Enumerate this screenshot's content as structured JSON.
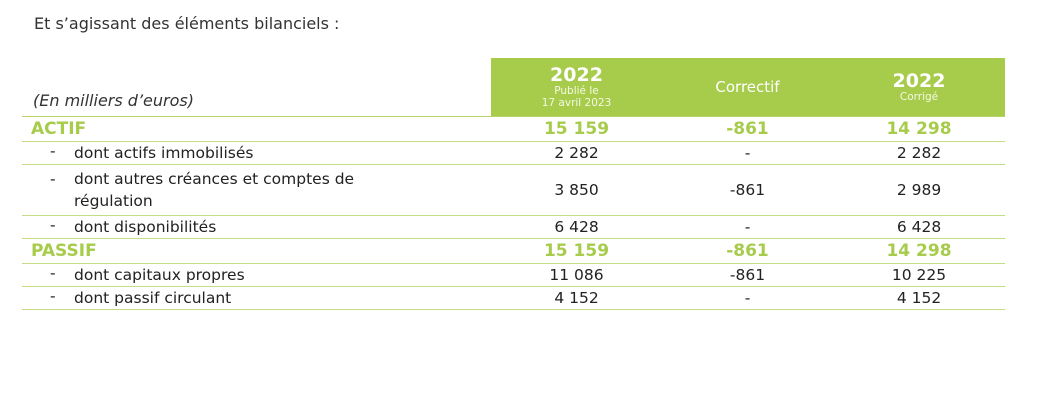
{
  "intro": "Et s’agissant des éléments bilanciels :",
  "header": {
    "unit": "(En milliers d’euros)",
    "col1": {
      "year": "2022",
      "sub1": "Publié le",
      "sub2": "17 avril 2023"
    },
    "col2": {
      "label": "Correctif"
    },
    "col3": {
      "year": "2022",
      "sub": "Corrigé"
    }
  },
  "actif": {
    "label": "ACTIF",
    "values": [
      "15 159",
      "-861",
      "14 298"
    ],
    "items": [
      {
        "label": "dont actifs immobilisés",
        "values": [
          "2 282",
          "-",
          "2 282"
        ]
      },
      {
        "label_line1": "dont autres créances et comptes de",
        "label_line2": "régulation",
        "values": [
          "3 850",
          "-861",
          "2 989"
        ]
      },
      {
        "label": "dont disponibilités",
        "values": [
          "6 428",
          "-",
          "6 428"
        ]
      }
    ]
  },
  "passif": {
    "label": "PASSIF",
    "values": [
      "15 159",
      "-861",
      "14 298"
    ],
    "items": [
      {
        "label": "dont capitaux propres",
        "values": [
          "11 086",
          "-861",
          "10 225"
        ]
      },
      {
        "label": "dont passif circulant",
        "values": [
          "4 152",
          "-",
          "4 152"
        ]
      }
    ]
  },
  "dash": "-"
}
